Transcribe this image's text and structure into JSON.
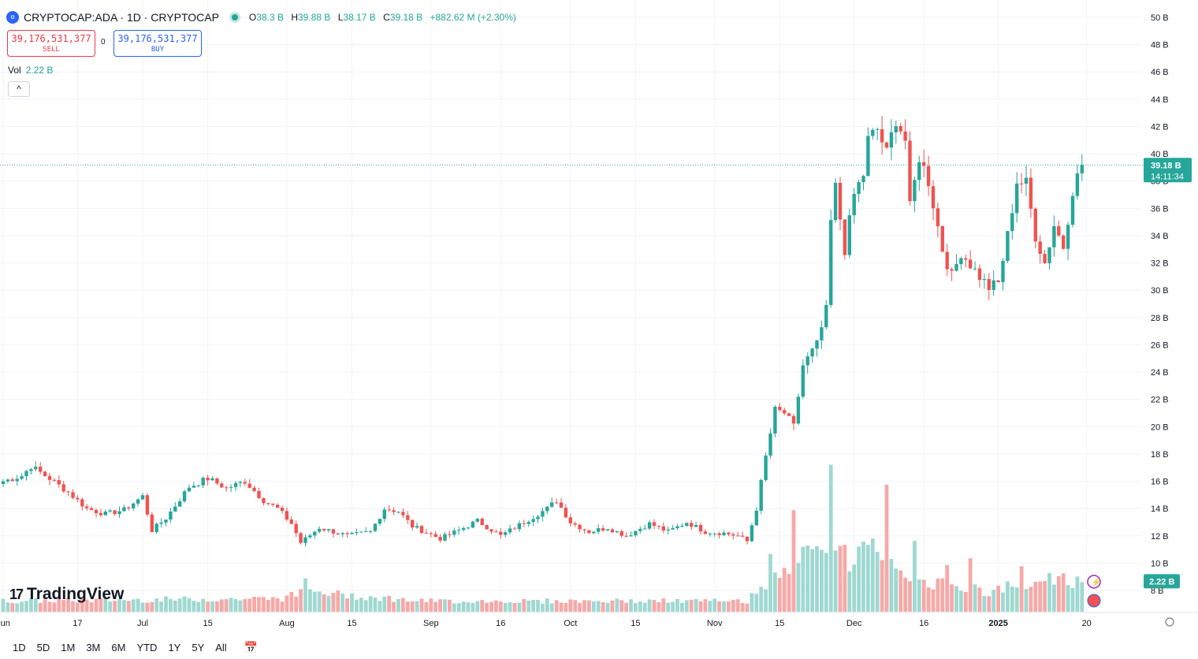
{
  "header": {
    "symbol_icon": "circle-coin-icon",
    "title": "CRYPTOCAP:ADA · 1D · CRYPTOCAP",
    "open_label": "O",
    "open": "38.3 B",
    "high_label": "H",
    "high": "39.88 B",
    "low_label": "L",
    "low": "38.17 B",
    "close_label": "C",
    "close": "39.18 B",
    "change": "+882.62 M (+2.30%)"
  },
  "trade": {
    "sell_price": "39,176,531,377",
    "sell_label": "SELL",
    "spread": "0",
    "buy_price": "39,176,531,377",
    "buy_label": "BUY"
  },
  "volume_legend": {
    "label": "Vol",
    "value": "2.22 B"
  },
  "collapse_label": "^",
  "logo": {
    "mark": "17",
    "text": "TradingView"
  },
  "bottom_bar": {
    "ranges": [
      "1D",
      "5D",
      "1M",
      "3M",
      "6M",
      "YTD",
      "1Y",
      "5Y",
      "All"
    ],
    "calendar_icon": "calendar-goto-icon"
  },
  "colors": {
    "up": "#26a69a",
    "down": "#ef5350",
    "vol_up": "#9fd8d1",
    "vol_down": "#f6a9a7"
  },
  "chart_data": {
    "type": "candlestick",
    "title": "CRYPTOCAP:ADA · 1D · CRYPTOCAP",
    "unit": "B",
    "ylim": [
      6.5,
      50.5
    ],
    "y_ticks": [
      "50 B",
      "48 B",
      "46 B",
      "44 B",
      "42 B",
      "40 B",
      "38 B",
      "36 B",
      "34 B",
      "32 B",
      "30 B",
      "28 B",
      "26 B",
      "24 B",
      "22 B",
      "20 B",
      "18 B",
      "16 B",
      "14 B",
      "12 B",
      "10 B",
      "8 B"
    ],
    "y_tick_values": [
      50,
      48,
      46,
      44,
      42,
      40,
      38,
      36,
      34,
      32,
      30,
      28,
      26,
      24,
      22,
      20,
      18,
      16,
      14,
      12,
      10,
      8
    ],
    "x_ticks": [
      {
        "label": "Jun",
        "day": 0
      },
      {
        "label": "17",
        "day": 16
      },
      {
        "label": "Jul",
        "day": 30
      },
      {
        "label": "15",
        "day": 44
      },
      {
        "label": "Aug",
        "day": 61
      },
      {
        "label": "15",
        "day": 75
      },
      {
        "label": "Sep",
        "day": 92
      },
      {
        "label": "16",
        "day": 107
      },
      {
        "label": "Oct",
        "day": 122
      },
      {
        "label": "15",
        "day": 136
      },
      {
        "label": "Nov",
        "day": 153
      },
      {
        "label": "15",
        "day": 167
      },
      {
        "label": "Dec",
        "day": 183
      },
      {
        "label": "16",
        "day": 198
      },
      {
        "label": "2025",
        "day": 214
      },
      {
        "label": "20",
        "day": 233
      }
    ],
    "last_price_label": "39.18 B",
    "countdown": "14:11:34",
    "last_price": 39.18,
    "last_volume_label": "2.22 B",
    "last_volume": 2.22,
    "volume_scale": 11.5,
    "anchors": [
      [
        0,
        16.0
      ],
      [
        4,
        16.4
      ],
      [
        6,
        17.1
      ],
      [
        10,
        16.2
      ],
      [
        14,
        15.2
      ],
      [
        18,
        14.0
      ],
      [
        22,
        13.6
      ],
      [
        26,
        13.9
      ],
      [
        30,
        14.9
      ],
      [
        32,
        12.4
      ],
      [
        35,
        13.3
      ],
      [
        40,
        15.6
      ],
      [
        44,
        16.2
      ],
      [
        48,
        15.5
      ],
      [
        52,
        16.0
      ],
      [
        56,
        14.6
      ],
      [
        59,
        14.0
      ],
      [
        62,
        12.9
      ],
      [
        64,
        11.5
      ],
      [
        68,
        12.6
      ],
      [
        74,
        12.0
      ],
      [
        79,
        12.3
      ],
      [
        82,
        14.0
      ],
      [
        85,
        13.8
      ],
      [
        88,
        12.7
      ],
      [
        94,
        11.8
      ],
      [
        98,
        12.4
      ],
      [
        102,
        13.1
      ],
      [
        107,
        12.0
      ],
      [
        112,
        13.0
      ],
      [
        117,
        14.0
      ],
      [
        119,
        14.6
      ],
      [
        122,
        13.0
      ],
      [
        126,
        12.3
      ],
      [
        130,
        12.6
      ],
      [
        134,
        12.0
      ],
      [
        139,
        12.9
      ],
      [
        143,
        12.3
      ],
      [
        147,
        13.0
      ],
      [
        151,
        12.3
      ],
      [
        155,
        12.2
      ],
      [
        158,
        12.0
      ],
      [
        160,
        11.6
      ],
      [
        162,
        14.0
      ],
      [
        164,
        17.8
      ],
      [
        166,
        21.2
      ],
      [
        168,
        21.0
      ],
      [
        170,
        20.0
      ],
      [
        172,
        24.5
      ],
      [
        175,
        26.0
      ],
      [
        177,
        28.5
      ],
      [
        178,
        35.0
      ],
      [
        179,
        37.5
      ],
      [
        181,
        33.0
      ],
      [
        183,
        37.0
      ],
      [
        185,
        38.5
      ],
      [
        186,
        41.0
      ],
      [
        188,
        41.8
      ],
      [
        190,
        40.0
      ],
      [
        192,
        42.6
      ],
      [
        194,
        41.0
      ],
      [
        195,
        36.0
      ],
      [
        197,
        39.8
      ],
      [
        199,
        38.0
      ],
      [
        202,
        33.0
      ],
      [
        204,
        31.0
      ],
      [
        206,
        32.8
      ],
      [
        210,
        31.0
      ],
      [
        212,
        30.2
      ],
      [
        214,
        30.5
      ],
      [
        216,
        34.0
      ],
      [
        218,
        38.0
      ],
      [
        220,
        37.8
      ],
      [
        222,
        34.0
      ],
      [
        224,
        32.0
      ],
      [
        226,
        34.8
      ],
      [
        228,
        33.2
      ],
      [
        230,
        37.4
      ],
      [
        232,
        39.18
      ]
    ],
    "volume_anchors": [
      [
        0,
        0.8
      ],
      [
        30,
        0.9
      ],
      [
        60,
        1.0
      ],
      [
        65,
        1.5
      ],
      [
        90,
        0.8
      ],
      [
        160,
        0.8
      ],
      [
        165,
        2.5
      ],
      [
        170,
        3.5
      ],
      [
        175,
        4.5
      ],
      [
        178,
        6.0
      ],
      [
        180,
        4.0
      ],
      [
        183,
        3.5
      ],
      [
        185,
        4.5
      ],
      [
        187,
        5.0
      ],
      [
        190,
        3.5
      ],
      [
        195,
        3.0
      ],
      [
        198,
        2.0
      ],
      [
        203,
        2.5
      ],
      [
        208,
        1.8
      ],
      [
        212,
        1.2
      ],
      [
        216,
        2.0
      ],
      [
        222,
        2.2
      ],
      [
        226,
        2.6
      ],
      [
        232,
        2.22
      ]
    ],
    "volume_spikes": [
      [
        65,
        2.5
      ],
      [
        165,
        4.3
      ],
      [
        170,
        7.6
      ],
      [
        178,
        11.0
      ],
      [
        181,
        5.0
      ],
      [
        190,
        9.5
      ],
      [
        196,
        5.3
      ],
      [
        203,
        3.5
      ],
      [
        208,
        4.0
      ],
      [
        219,
        3.4
      ]
    ]
  }
}
